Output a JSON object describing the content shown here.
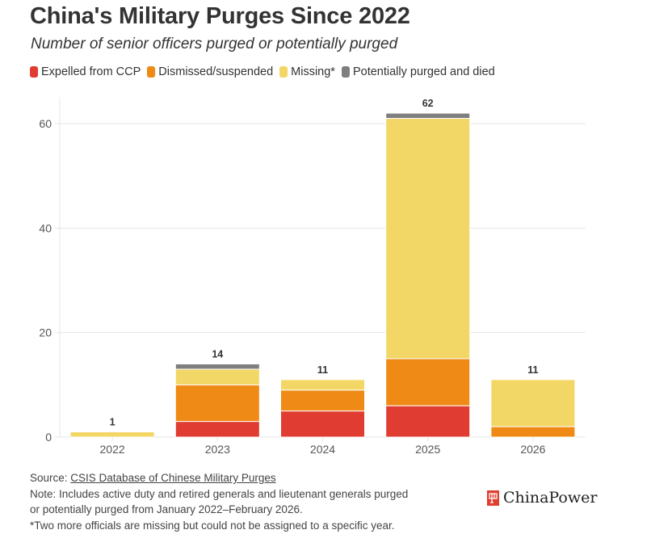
{
  "header": {
    "title": "China's Military Purges Since 2022",
    "subtitle": "Number of senior officers purged or potentially purged"
  },
  "legend": [
    {
      "label": "Expelled from CCP",
      "color": "#e03c31"
    },
    {
      "label": "Dismissed/suspended",
      "color": "#ee8a15"
    },
    {
      "label": "Missing*",
      "color": "#f2d766"
    },
    {
      "label": "Potentially purged and died",
      "color": "#7f7f7f"
    }
  ],
  "chart_data": {
    "type": "bar",
    "stacked": true,
    "title": "China's Military Purges Since 2022",
    "subtitle": "Number of senior officers purged or potentially purged",
    "xlabel": "",
    "ylabel": "",
    "categories": [
      "2022",
      "2023",
      "2024",
      "2025",
      "2026"
    ],
    "series": [
      {
        "name": "Expelled from CCP",
        "color": "#e03c31",
        "values": [
          0,
          3,
          5,
          6,
          0
        ]
      },
      {
        "name": "Dismissed/suspended",
        "color": "#ee8a15",
        "values": [
          0,
          7,
          4,
          9,
          2
        ]
      },
      {
        "name": "Missing*",
        "color": "#f2d766",
        "values": [
          1,
          3,
          2,
          46,
          9
        ]
      },
      {
        "name": "Potentially purged and died",
        "color": "#7f7f7f",
        "values": [
          0,
          1,
          0,
          1,
          0
        ]
      }
    ],
    "totals": [
      1,
      14,
      11,
      62,
      11
    ],
    "ylim": [
      0,
      65
    ],
    "yticks": [
      0,
      20,
      40,
      60
    ],
    "grid": true,
    "legend_position": "top-left"
  },
  "footer": {
    "source_prefix": "Source: ",
    "source_link": "CSIS Database of Chinese Military Purges",
    "note_line1": "Note: Includes active duty and retired generals and lieutenant generals purged",
    "note_line2": "or potentially purged from January 2022–February 2026.",
    "asterisk_note": "*Two more officials are missing but could not be assigned to a specific year."
  },
  "brand": {
    "name": "ChinaPower",
    "color": "#e03e30"
  }
}
